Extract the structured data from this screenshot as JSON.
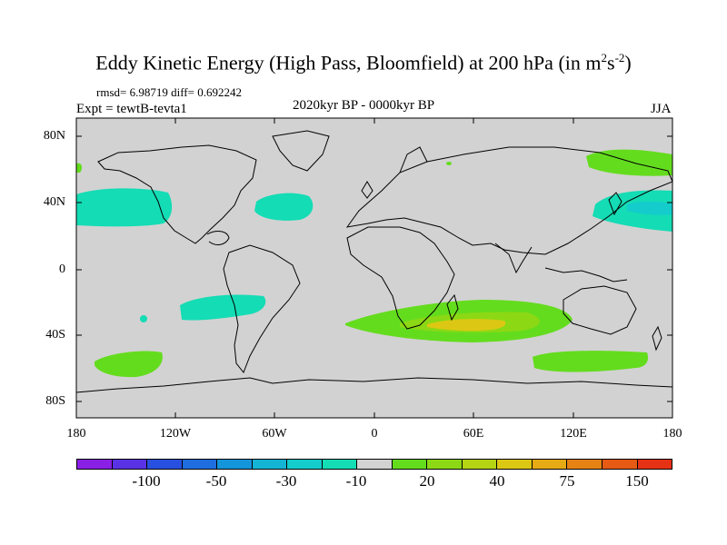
{
  "title": {
    "main": "Eddy Kinetic Energy (High Pass, Bloomfield) at 200 hPa (in m",
    "sup1": "2",
    "mid": "s",
    "sup2": "-2",
    "end": ")"
  },
  "stats": "rmsd= 6.98719 diff= 0.692242",
  "expt": "Expt = tewtB-tevta1",
  "period": "2020kyr BP - 0000kyr BP",
  "season": "JJA",
  "chart_data": {
    "type": "heatmap",
    "projection": "cylindrical-equidistant",
    "variable": "Eddy kinetic energy difference at 200 hPa",
    "units": "m2 s-2",
    "lon_range": [
      -180,
      180
    ],
    "lat_range": [
      -90,
      90
    ],
    "y_ticks": [
      "80N",
      "40N",
      "0",
      "40S",
      "80S"
    ],
    "x_ticks": [
      "180",
      "120W",
      "60W",
      "0",
      "60E",
      "120E",
      "180"
    ],
    "colorbar": {
      "labels": [
        "-100",
        "-50",
        "-30",
        "-10",
        "20",
        "40",
        "75",
        "150"
      ],
      "colors": [
        "#8a1fe6",
        "#5a32e6",
        "#2850e0",
        "#1e6ee0",
        "#1494da",
        "#14b4d4",
        "#14cccc",
        "#14dcb4",
        "#d2d2d2",
        "#64dc1e",
        "#8cd814",
        "#b4d414",
        "#dcc814",
        "#e6aa14",
        "#e68214",
        "#e65a14",
        "#e63214"
      ]
    },
    "regions": [
      {
        "name": "north-pacific-east",
        "value": "-10 to -30",
        "center": [
          -172,
          40
        ]
      },
      {
        "name": "north-pacific-west",
        "value": "-10 to -30",
        "center": [
          165,
          40
        ]
      },
      {
        "name": "north-atlantic",
        "value": "-10 to -30",
        "center": [
          -40,
          40
        ]
      },
      {
        "name": "south-pacific-subtropical",
        "value": "-10 to -30",
        "center": [
          -90,
          -30
        ]
      },
      {
        "name": "southern-indian-ocean-jet",
        "value": "20 to 75",
        "center": [
          50,
          -35
        ]
      },
      {
        "name": "south-pacific-highlat",
        "value": "10 to 20",
        "center": [
          -140,
          -55
        ]
      },
      {
        "name": "south-of-australia",
        "value": "10 to 20",
        "center": [
          120,
          -55
        ]
      },
      {
        "name": "north-pacific-subarctic",
        "value": "10 to 20",
        "center": [
          150,
          65
        ]
      }
    ]
  }
}
